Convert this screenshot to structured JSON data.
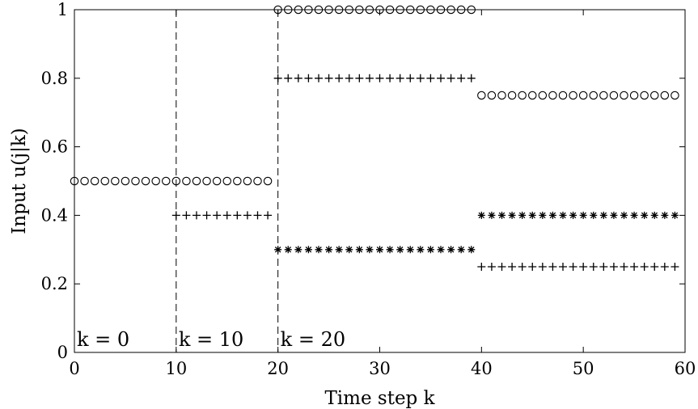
{
  "chart_data": {
    "type": "scatter",
    "title": "",
    "xlabel": "Time step k",
    "ylabel": "Input u(j|k)",
    "xlim": [
      0,
      60
    ],
    "ylim": [
      0,
      1
    ],
    "xticks": [
      "0",
      "10",
      "20",
      "30",
      "40",
      "50",
      "60"
    ],
    "yticks": [
      "0",
      "0.2",
      "0.4",
      "0.6",
      "0.8",
      "1"
    ],
    "grid": false,
    "vlines": [
      10,
      20
    ],
    "annotations": [
      {
        "text": "k = 0",
        "x": 0
      },
      {
        "text": "k = 10",
        "x": 10
      },
      {
        "text": "k = 20",
        "x": 20
      }
    ],
    "series": [
      {
        "marker": "circle",
        "segments": [
          {
            "x_start": 0,
            "x_end": 19,
            "y": 0.5
          },
          {
            "x_start": 20,
            "x_end": 39,
            "y": 1.0
          },
          {
            "x_start": 40,
            "x_end": 59,
            "y": 0.75
          }
        ]
      },
      {
        "marker": "plus",
        "segments": [
          {
            "x_start": 10,
            "x_end": 19,
            "y": 0.4
          },
          {
            "x_start": 20,
            "x_end": 39,
            "y": 0.8
          },
          {
            "x_start": 40,
            "x_end": 59,
            "y": 0.25
          }
        ]
      },
      {
        "marker": "star",
        "segments": [
          {
            "x_start": 20,
            "x_end": 39,
            "y": 0.3
          },
          {
            "x_start": 40,
            "x_end": 59,
            "y": 0.4
          }
        ]
      }
    ]
  }
}
